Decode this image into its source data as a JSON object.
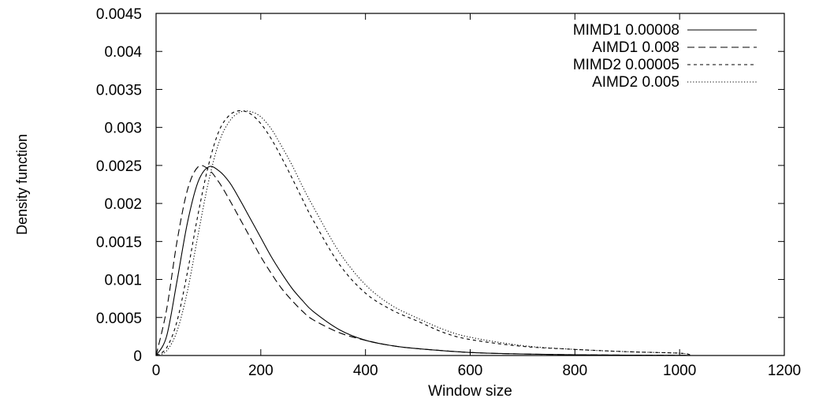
{
  "chart_data": {
    "type": "line",
    "xlabel": "Window size",
    "ylabel": "Density function",
    "xlim": [
      0,
      1200
    ],
    "ylim": [
      0,
      0.0045
    ],
    "xticks": [
      0,
      200,
      400,
      600,
      800,
      1000,
      1200
    ],
    "xtick_labels": [
      "0",
      "200",
      "400",
      "600",
      "800",
      "1000",
      "1200"
    ],
    "yticks": [
      0,
      0.0005,
      0.001,
      0.0015,
      0.002,
      0.0025,
      0.003,
      0.0035,
      0.004,
      0.0045
    ],
    "ytick_labels": [
      "0",
      "0.0005",
      "0.001",
      "0.0015",
      "0.002",
      "0.0025",
      "0.003",
      "0.0035",
      "0.004",
      "0.0045"
    ],
    "grid": false,
    "legend_position": "top-right",
    "series": [
      {
        "name": "MIMD1 0.00008",
        "dash": "solid",
        "x": [
          0,
          20,
          40,
          60,
          80,
          100,
          120,
          140,
          160,
          180,
          200,
          220,
          240,
          260,
          280,
          300,
          350,
          400,
          450,
          500,
          600,
          700,
          800,
          900,
          1000,
          1020
        ],
        "y": [
          0,
          0.00025,
          0.00098,
          0.00175,
          0.00228,
          0.00248,
          0.00243,
          0.00228,
          0.00205,
          0.0018,
          0.00155,
          0.0013,
          0.00108,
          0.00088,
          0.00072,
          0.00058,
          0.00034,
          0.0002,
          0.00013,
          9e-05,
          4e-05,
          2e-05,
          1e-05,
          5e-06,
          2.5e-06,
          2e-06
        ]
      },
      {
        "name": "AIMD1 0.008",
        "dash": "long-dash",
        "x": [
          0,
          20,
          40,
          60,
          80,
          100,
          120,
          140,
          160,
          180,
          200,
          220,
          240,
          260,
          280,
          300,
          350,
          400,
          450,
          500,
          600,
          700,
          800,
          900,
          1000,
          1020
        ],
        "y": [
          0,
          0.0006,
          0.0015,
          0.00218,
          0.00248,
          0.00245,
          0.00228,
          0.00205,
          0.0018,
          0.00155,
          0.0013,
          0.00108,
          0.00088,
          0.00072,
          0.00058,
          0.00047,
          0.0003,
          0.0002,
          0.00013,
          9e-05,
          4e-05,
          2e-05,
          1e-05,
          5e-06,
          2.5e-06,
          2e-06
        ]
      },
      {
        "name": "MIMD2 0.00005",
        "dash": "short-dash",
        "x": [
          0,
          20,
          40,
          60,
          80,
          100,
          120,
          140,
          160,
          180,
          200,
          220,
          240,
          260,
          280,
          300,
          350,
          400,
          450,
          500,
          550,
          600,
          700,
          800,
          900,
          1000,
          1020
        ],
        "y": [
          0,
          0.0001,
          0.00045,
          0.0011,
          0.00185,
          0.0025,
          0.00295,
          0.00316,
          0.00322,
          0.00318,
          0.00305,
          0.00285,
          0.0026,
          0.00233,
          0.00205,
          0.00178,
          0.0012,
          0.00082,
          0.0006,
          0.00045,
          0.0003,
          0.00021,
          0.00012,
          8e-05,
          5e-05,
          3e-05,
          1e-05
        ]
      },
      {
        "name": "AIMD2 0.005",
        "dash": "dotted",
        "x": [
          0,
          20,
          40,
          60,
          80,
          100,
          120,
          140,
          160,
          180,
          200,
          220,
          240,
          260,
          280,
          300,
          350,
          400,
          450,
          500,
          550,
          600,
          700,
          800,
          900,
          1000,
          1020
        ],
        "y": [
          0,
          6e-05,
          0.00032,
          0.00085,
          0.00158,
          0.00228,
          0.0028,
          0.00308,
          0.0032,
          0.00321,
          0.00314,
          0.00298,
          0.00275,
          0.0025,
          0.00222,
          0.00196,
          0.00136,
          0.00093,
          0.00066,
          0.00049,
          0.00034,
          0.00024,
          0.00013,
          8e-05,
          5e-05,
          3e-05,
          1e-05
        ]
      }
    ]
  }
}
